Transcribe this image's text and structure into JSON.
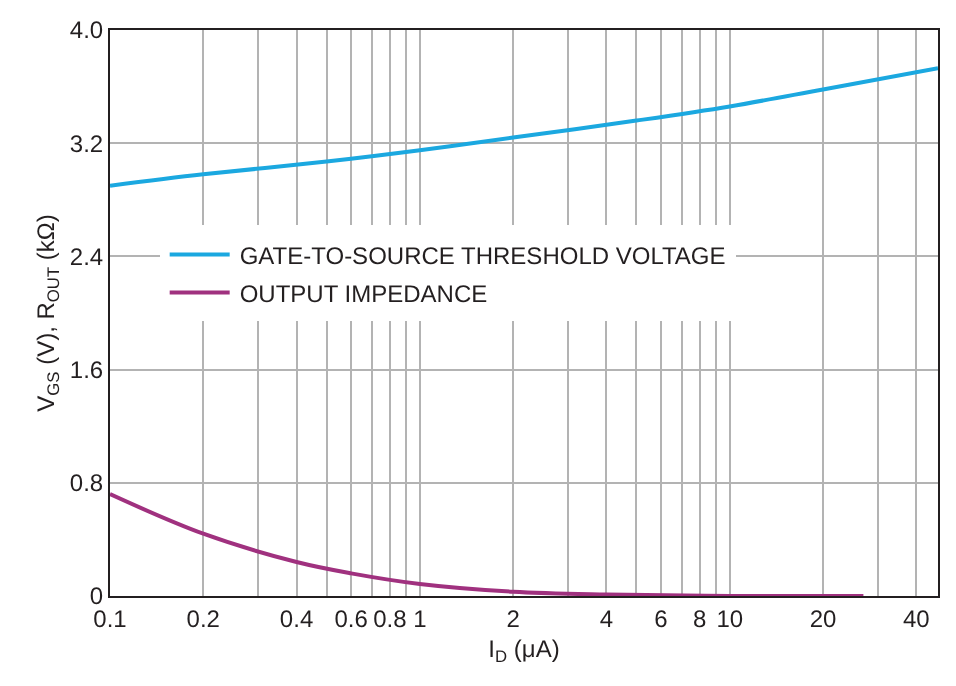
{
  "chart_data": {
    "type": "line",
    "xlabel": "I$_{D}$ (μA)",
    "ylabel": "V$_{GS}$ (V), R$_{OUT}$ (kΩ)",
    "log": "x",
    "grid": true,
    "legend": "left",
    "marker": "none",
    "line_style": "solid",
    "xlim": [
      0.1,
      47
    ],
    "ylim": [
      0,
      4
    ],
    "xticks": [
      0.1,
      0.2,
      {
        "value": 0.3,
        "label": null
      },
      0.4,
      {
        "value": 0.5,
        "label": null
      },
      0.6,
      {
        "value": 0.7,
        "label": null
      },
      0.8,
      {
        "value": 0.9,
        "label": null
      },
      1,
      2,
      {
        "value": 3,
        "label": null
      },
      4,
      {
        "value": 5,
        "label": null
      },
      6,
      {
        "value": 7,
        "label": null
      },
      8,
      {
        "value": 9,
        "label": null
      },
      10,
      20,
      {
        "value": 30,
        "label": null
      },
      40
    ],
    "yticks": [
      0,
      0.8,
      1.6,
      2.4,
      3.2,
      {
        "value": 4,
        "label": "4.0"
      }
    ],
    "series": [
      {
        "name": "GATE-TO-SOURCE THRESHOLD VOLTAGE",
        "color": "#1ba8e0",
        "x": [
          0.1,
          0.2,
          0.5,
          1,
          2,
          5,
          10,
          20,
          47
        ],
        "values": [
          2.9,
          2.98,
          3.07,
          3.15,
          3.24,
          3.36,
          3.46,
          3.58,
          3.73
        ]
      },
      {
        "name": "OUTPUT IMPEDANCE",
        "color": "#a0317f",
        "x": [
          0.1,
          0.2,
          0.4,
          0.6,
          1,
          2,
          4,
          10,
          27
        ],
        "values": [
          0.72,
          0.44,
          0.24,
          0.16,
          0.085,
          0.03,
          0.01,
          0,
          0
        ]
      }
    ]
  }
}
